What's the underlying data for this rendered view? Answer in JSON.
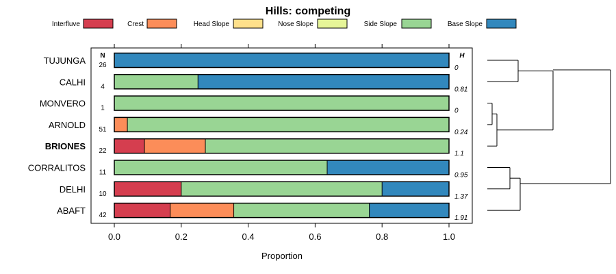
{
  "chart_data": {
    "type": "bar",
    "orientation": "horizontal",
    "stacked": true,
    "title": "Hills: competing",
    "xlabel": "Proportion",
    "ylabel": "",
    "xlim": [
      0,
      1
    ],
    "xticks": [
      "0.0",
      "0.2",
      "0.4",
      "0.6",
      "0.8",
      "1.0"
    ],
    "xtick_values": [
      0,
      0.2,
      0.4,
      0.6,
      0.8,
      1.0
    ],
    "n_header": "N",
    "h_header": "H",
    "legend_position": "top",
    "legend": [
      {
        "name": "Interfluve",
        "color": "#d53e4f"
      },
      {
        "name": "Crest",
        "color": "#fc8d59"
      },
      {
        "name": "Head Slope",
        "color": "#fee08b"
      },
      {
        "name": "Nose Slope",
        "color": "#e6f598"
      },
      {
        "name": "Side Slope",
        "color": "#99d594"
      },
      {
        "name": "Base Slope",
        "color": "#3288bd"
      }
    ],
    "categories": [
      "TUJUNGA",
      "CALHI",
      "MONVERO",
      "ARNOLD",
      "BRIONES",
      "CORRALITOS",
      "DELHI",
      "ABAFT"
    ],
    "highlight": "BRIONES",
    "n_values": [
      "26",
      "4",
      "1",
      "51",
      "22",
      "11",
      "10",
      "42"
    ],
    "h_values": [
      "0",
      "0.81",
      "0",
      "0.24",
      "1.1",
      "0.95",
      "1.37",
      "1.91"
    ],
    "series": [
      {
        "name": "Interfluve",
        "values": [
          0,
          0,
          0,
          0,
          0.09,
          0,
          0.2,
          0.167
        ]
      },
      {
        "name": "Crest",
        "values": [
          0,
          0,
          0,
          0.039,
          0.182,
          0,
          0,
          0.19
        ]
      },
      {
        "name": "Head Slope",
        "values": [
          0,
          0,
          0,
          0,
          0,
          0,
          0,
          0
        ]
      },
      {
        "name": "Nose Slope",
        "values": [
          0,
          0,
          0,
          0,
          0,
          0,
          0,
          0
        ]
      },
      {
        "name": "Side Slope",
        "values": [
          0,
          0.25,
          1,
          0.961,
          0.728,
          0.636,
          0.6,
          0.405
        ]
      },
      {
        "name": "Base Slope",
        "values": [
          1,
          0.75,
          0,
          0,
          0,
          0.364,
          0.2,
          0.238
        ]
      }
    ],
    "dendrogram": "hierarchical clustering of categories shown at right"
  }
}
